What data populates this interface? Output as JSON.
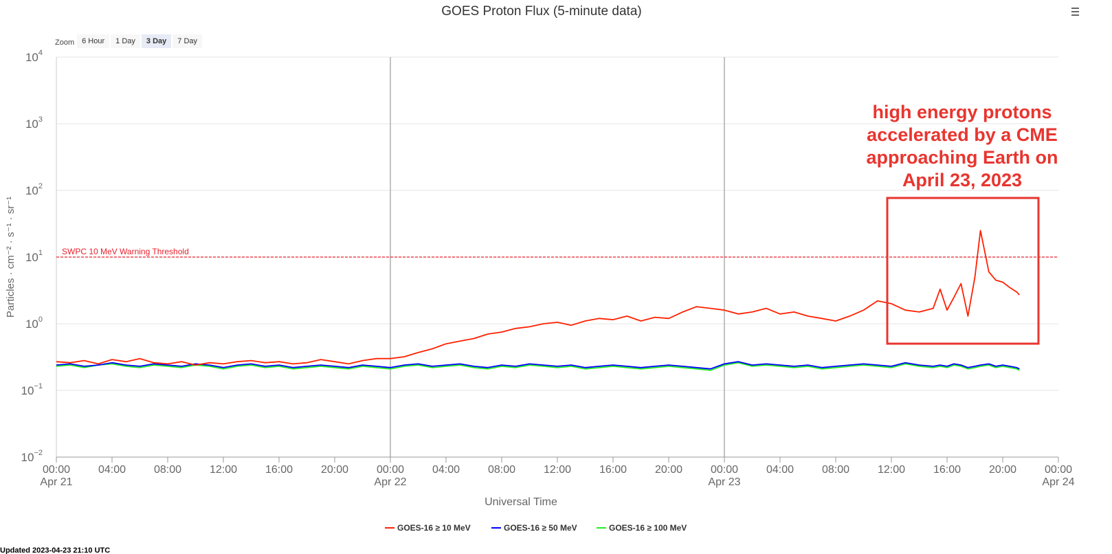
{
  "chart_data": {
    "type": "line",
    "title": "GOES Proton Flux (5-minute data)",
    "xlabel": "Universal Time",
    "ylabel": "Particles · cm⁻² · s⁻¹ · sr⁻¹",
    "log_y": true,
    "grid": true,
    "zoom_label": "Zoom",
    "zoom_options": [
      "6 Hour",
      "1 Day",
      "3 Day",
      "7 Day"
    ],
    "zoom_selected": 2,
    "updated": "Updated 2023-04-23 21:10 UTC",
    "xlim": [
      0,
      72
    ],
    "ylim": [
      0.01,
      10000
    ],
    "yticks": [
      {
        "value": 0.01,
        "label": "10",
        "sup": "−2"
      },
      {
        "value": 0.1,
        "label": "10",
        "sup": "−1"
      },
      {
        "value": 1,
        "label": "10",
        "sup": "0"
      },
      {
        "value": 10,
        "label": "10",
        "sup": "1"
      },
      {
        "value": 100,
        "label": "10",
        "sup": "2"
      },
      {
        "value": 1000,
        "label": "10",
        "sup": "3"
      },
      {
        "value": 10000,
        "label": "10",
        "sup": "4"
      }
    ],
    "xticks": [
      {
        "value": 0,
        "label": "00:00"
      },
      {
        "value": 4,
        "label": "04:00"
      },
      {
        "value": 8,
        "label": "08:00"
      },
      {
        "value": 12,
        "label": "12:00"
      },
      {
        "value": 16,
        "label": "16:00"
      },
      {
        "value": 20,
        "label": "20:00"
      },
      {
        "value": 24,
        "label": "00:00"
      },
      {
        "value": 28,
        "label": "04:00"
      },
      {
        "value": 32,
        "label": "08:00"
      },
      {
        "value": 36,
        "label": "12:00"
      },
      {
        "value": 40,
        "label": "16:00"
      },
      {
        "value": 44,
        "label": "20:00"
      },
      {
        "value": 48,
        "label": "00:00"
      },
      {
        "value": 52,
        "label": "04:00"
      },
      {
        "value": 56,
        "label": "08:00"
      },
      {
        "value": 60,
        "label": "12:00"
      },
      {
        "value": 64,
        "label": "16:00"
      },
      {
        "value": 68,
        "label": "20:00"
      },
      {
        "value": 72,
        "label": "00:00"
      }
    ],
    "x_day_labels": [
      {
        "value": 0,
        "label": "Apr 21"
      },
      {
        "value": 24,
        "label": "Apr 22"
      },
      {
        "value": 48,
        "label": "Apr 23"
      },
      {
        "value": 72,
        "label": "Apr 24"
      }
    ],
    "threshold": {
      "value": 10,
      "label": "SWPC 10 MeV Warning Threshold",
      "color": "#e8202a"
    },
    "annotation": {
      "lines": [
        "high energy protons",
        "accelerated by a CME",
        "approaching Earth on",
        "April 23, 2023"
      ],
      "color": "#e8352f"
    },
    "x": [
      0,
      1,
      2,
      3,
      4,
      5,
      6,
      7,
      8,
      9,
      10,
      11,
      12,
      13,
      14,
      15,
      16,
      17,
      18,
      19,
      20,
      21,
      22,
      23,
      24,
      25,
      26,
      27,
      28,
      29,
      30,
      31,
      32,
      33,
      34,
      35,
      36,
      37,
      38,
      39,
      40,
      41,
      42,
      43,
      44,
      45,
      46,
      47,
      48,
      49,
      50,
      51,
      52,
      53,
      54,
      55,
      56,
      57,
      58,
      59,
      60,
      61,
      62,
      63,
      63.5,
      64,
      64.5,
      65,
      65.5,
      66,
      66.4,
      67,
      67.5,
      68,
      68.5,
      69,
      69.2
    ],
    "series": [
      {
        "name": "GOES-16 ≥ 10 MeV",
        "color": "#ff2000",
        "values": [
          0.27,
          0.26,
          0.28,
          0.25,
          0.29,
          0.27,
          0.3,
          0.26,
          0.25,
          0.27,
          0.24,
          0.26,
          0.25,
          0.27,
          0.28,
          0.26,
          0.27,
          0.25,
          0.26,
          0.29,
          0.27,
          0.25,
          0.28,
          0.3,
          0.3,
          0.32,
          0.37,
          0.42,
          0.5,
          0.55,
          0.6,
          0.7,
          0.75,
          0.85,
          0.9,
          1.0,
          1.05,
          0.95,
          1.1,
          1.2,
          1.15,
          1.3,
          1.1,
          1.25,
          1.2,
          1.5,
          1.8,
          1.7,
          1.6,
          1.4,
          1.5,
          1.7,
          1.4,
          1.5,
          1.3,
          1.2,
          1.1,
          1.3,
          1.6,
          2.2,
          2.0,
          1.6,
          1.5,
          1.7,
          3.3,
          1.6,
          2.5,
          4.0,
          1.3,
          5,
          25,
          6,
          4.5,
          4.2,
          3.5,
          3,
          2.7
        ]
      },
      {
        "name": "GOES-16 ≥ 50 MeV",
        "color": "#0000ff",
        "values": [
          0.24,
          0.25,
          0.23,
          0.24,
          0.26,
          0.24,
          0.23,
          0.25,
          0.24,
          0.23,
          0.25,
          0.24,
          0.22,
          0.24,
          0.25,
          0.23,
          0.24,
          0.22,
          0.23,
          0.24,
          0.23,
          0.22,
          0.24,
          0.23,
          0.22,
          0.24,
          0.25,
          0.23,
          0.24,
          0.25,
          0.23,
          0.22,
          0.24,
          0.23,
          0.25,
          0.24,
          0.23,
          0.24,
          0.22,
          0.23,
          0.24,
          0.23,
          0.22,
          0.23,
          0.24,
          0.23,
          0.22,
          0.21,
          0.25,
          0.27,
          0.24,
          0.25,
          0.24,
          0.23,
          0.24,
          0.22,
          0.23,
          0.24,
          0.25,
          0.24,
          0.23,
          0.26,
          0.24,
          0.23,
          0.24,
          0.23,
          0.25,
          0.24,
          0.22,
          0.23,
          0.24,
          0.25,
          0.23,
          0.24,
          0.23,
          0.22,
          0.21
        ]
      },
      {
        "name": "GOES-16 ≥ 100 MeV",
        "color": "#22ee22",
        "values": [
          0.23,
          0.24,
          0.22,
          0.24,
          0.25,
          0.23,
          0.22,
          0.24,
          0.23,
          0.22,
          0.24,
          0.23,
          0.21,
          0.23,
          0.24,
          0.22,
          0.23,
          0.21,
          0.22,
          0.23,
          0.22,
          0.21,
          0.23,
          0.22,
          0.21,
          0.23,
          0.24,
          0.22,
          0.23,
          0.24,
          0.22,
          0.21,
          0.23,
          0.22,
          0.24,
          0.23,
          0.22,
          0.23,
          0.21,
          0.22,
          0.23,
          0.22,
          0.21,
          0.22,
          0.23,
          0.22,
          0.21,
          0.2,
          0.24,
          0.26,
          0.23,
          0.24,
          0.23,
          0.22,
          0.23,
          0.21,
          0.22,
          0.23,
          0.24,
          0.23,
          0.22,
          0.25,
          0.23,
          0.22,
          0.23,
          0.22,
          0.24,
          0.23,
          0.21,
          0.22,
          0.23,
          0.24,
          0.22,
          0.23,
          0.22,
          0.21,
          0.2
        ]
      }
    ]
  }
}
